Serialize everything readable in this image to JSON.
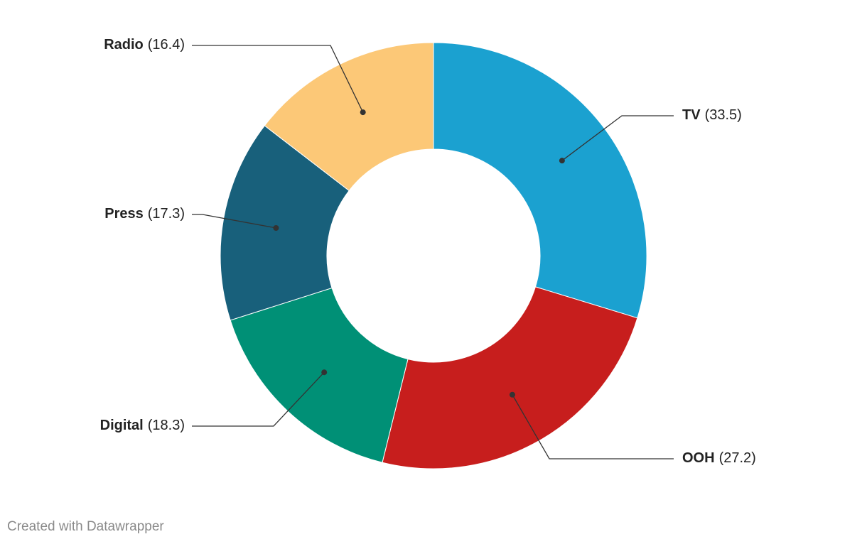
{
  "chart_data": {
    "type": "donut",
    "categories": [
      "TV",
      "OOH",
      "Digital",
      "Press",
      "Radio"
    ],
    "values": [
      33.5,
      27.2,
      18.3,
      17.3,
      16.4
    ],
    "value_labels": [
      "(33.5)",
      "(27.2)",
      "(18.3)",
      "(17.3)",
      "(16.4)"
    ],
    "colors": [
      "#1ba1d0",
      "#c71e1d",
      "#009076",
      "#18607b",
      "#fcc877"
    ],
    "footer": "Created with Datawrapper"
  }
}
